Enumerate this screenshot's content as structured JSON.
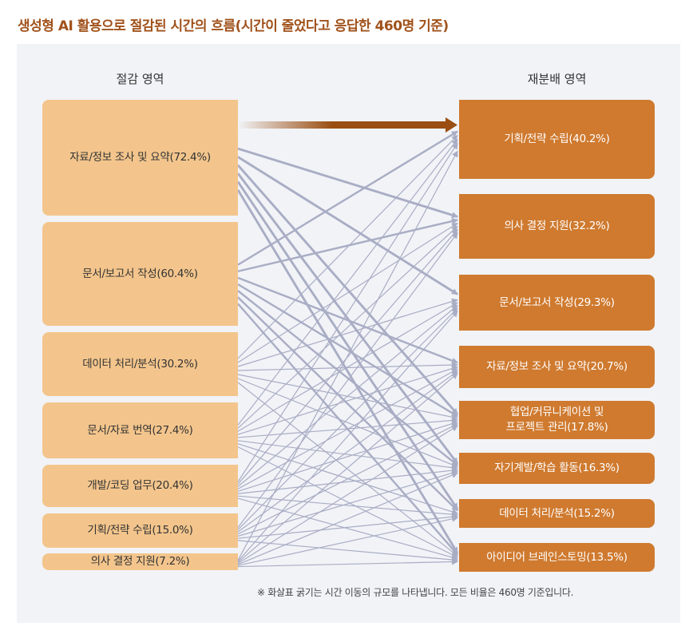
{
  "title": "생성형 AI 활용으로 절감된 시간의 흐름(시간이 줄었다고 응답한 460명 기준)",
  "left_header": "절감 영역",
  "right_header": "재분배 영역",
  "sources": [
    {
      "label": "자료/정보 조사 및 요약(72.4%)",
      "value": 72.4
    },
    {
      "label": "문서/보고서 작성(60.4%)",
      "value": 60.4
    },
    {
      "label": "데이터 처리/분석(30.2%)",
      "value": 30.2
    },
    {
      "label": "문서/자료 번역(27.4%)",
      "value": 27.4
    },
    {
      "label": "개발/코딩 업무(20.4%)",
      "value": 20.4
    },
    {
      "label": "기획/전략 수립(15.0%)",
      "value": 15.0
    },
    {
      "label": "의사 결정 지원(7.2%)",
      "value": 7.2
    }
  ],
  "targets": [
    {
      "label": "기획/전략 수립(40.2%)",
      "value": 40.2
    },
    {
      "label": "의사 결정 지원(32.2%)",
      "value": 32.2
    },
    {
      "label": "문서/보고서 작성(29.3%)",
      "value": 29.3
    },
    {
      "label": "자료/정보 조사 및 요약(20.7%)",
      "value": 20.7
    },
    {
      "label": "협업/커뮤니케이션 및\n프로젝트 관리(17.8%)",
      "value": 17.8
    },
    {
      "label": "자기계발/학습 활동(16.3%)",
      "value": 16.3
    },
    {
      "label": "데이터 처리/분석(15.2%)",
      "value": 15.2
    },
    {
      "label": "아이디어 브레인스토밍(13.5%)",
      "value": 13.5
    }
  ],
  "highlight_link": {
    "source": 0,
    "target": 0
  },
  "colors": {
    "link": "#a9adc4",
    "highlight": "#9a4e12",
    "source": "#f3c58c",
    "target": "#cf7a2f",
    "title": "#a0521b",
    "panel": "#f1f3f7"
  },
  "note": "※ 화살표 굵기는 시간 이동의 규모를 나타냅니다. 모든 비율은 460명 기준입니다."
}
